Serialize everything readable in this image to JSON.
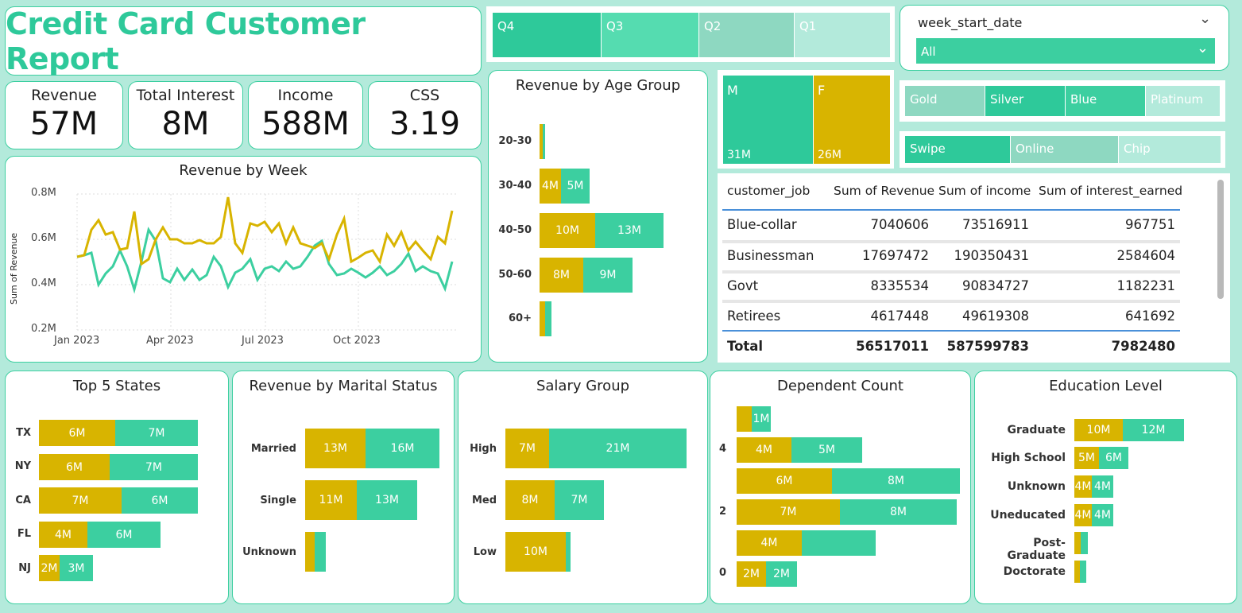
{
  "title": "Credit Card Customer Report",
  "kpis": [
    {
      "label": "Revenue",
      "value": "57M"
    },
    {
      "label": "Total Interest",
      "value": "8M"
    },
    {
      "label": "Income",
      "value": "588M"
    },
    {
      "label": "CSS",
      "value": "3.19"
    }
  ],
  "quarters": [
    "Q4",
    "Q3",
    "Q2",
    "Q1"
  ],
  "week_slicer": {
    "label": "week_start_date",
    "selected": "All"
  },
  "gender": [
    {
      "label": "M",
      "value": "31M"
    },
    {
      "label": "F",
      "value": "26M"
    }
  ],
  "card_category": [
    "Gold",
    "Silver",
    "Blue",
    "Platinum"
  ],
  "use_chip": [
    "Swipe",
    "Online",
    "Chip"
  ],
  "colors": {
    "accent": "#3ccfa0",
    "gold": "#d8b400",
    "title": "#2ec99a",
    "background": "#b3eadb"
  },
  "table": {
    "headers": [
      "customer_job",
      "Sum of Revenue",
      "Sum of income",
      "Sum of interest_earned"
    ],
    "rows": [
      [
        "Blue-collar",
        "7040606",
        "73516911",
        "967751"
      ],
      [
        "Businessman",
        "17697472",
        "190350431",
        "2584604"
      ],
      [
        "Govt",
        "8335534",
        "90834727",
        "1182231"
      ],
      [
        "Retirees",
        "4617448",
        "49619308",
        "641692"
      ]
    ],
    "total": [
      "Total",
      "56517011",
      "587599783",
      "7982480"
    ]
  },
  "weekly": {
    "title": "Revenue by Week",
    "ylabel": "Sum of Revenue",
    "yticks": [
      "0.8M",
      "0.6M",
      "0.4M",
      "0.2M"
    ],
    "xticks": [
      "Jan 2023",
      "Apr 2023",
      "Jul 2023",
      "Oct 2023"
    ]
  },
  "age": {
    "title": "Revenue by Age Group",
    "rows": [
      {
        "label": "20-30",
        "a": "",
        "b": ""
      },
      {
        "label": "30-40",
        "a": "4M",
        "b": "5M"
      },
      {
        "label": "40-50",
        "a": "10M",
        "b": "13M"
      },
      {
        "label": "50-60",
        "a": "8M",
        "b": "9M"
      },
      {
        "label": "60+",
        "a": "",
        "b": ""
      }
    ]
  },
  "states": {
    "title": "Top 5 States",
    "rows": [
      {
        "label": "TX",
        "a": "6M",
        "b": "7M"
      },
      {
        "label": "NY",
        "a": "6M",
        "b": "7M"
      },
      {
        "label": "CA",
        "a": "7M",
        "b": "6M"
      },
      {
        "label": "FL",
        "a": "4M",
        "b": "6M"
      },
      {
        "label": "NJ",
        "a": "2M",
        "b": "3M"
      }
    ]
  },
  "marital": {
    "title": "Revenue by Marital Status",
    "rows": [
      {
        "label": "Married",
        "a": "13M",
        "b": "16M"
      },
      {
        "label": "Single",
        "a": "11M",
        "b": "13M"
      },
      {
        "label": "Unknown",
        "a": "",
        "b": ""
      }
    ]
  },
  "salary": {
    "title": "Salary Group",
    "rows": [
      {
        "label": "High",
        "a": "7M",
        "b": "21M"
      },
      {
        "label": "Med",
        "a": "8M",
        "b": "7M"
      },
      {
        "label": "Low",
        "a": "10M",
        "b": ""
      }
    ]
  },
  "dependent": {
    "title": "Dependent Count",
    "ticks": [
      "4",
      "2",
      "0"
    ],
    "rows": [
      {
        "a": "",
        "b": "1M"
      },
      {
        "a": "4M",
        "b": "5M"
      },
      {
        "a": "6M",
        "b": "8M"
      },
      {
        "a": "7M",
        "b": "8M"
      },
      {
        "a": "4M",
        "b": ""
      },
      {
        "a": "2M",
        "b": "2M"
      }
    ]
  },
  "education": {
    "title": "Education Level",
    "rows": [
      {
        "label": "Graduate",
        "a": "10M",
        "b": "12M"
      },
      {
        "label": "High School",
        "a": "5M",
        "b": "6M"
      },
      {
        "label": "Unknown",
        "a": "4M",
        "b": "4M"
      },
      {
        "label": "Uneducated",
        "a": "4M",
        "b": "4M"
      },
      {
        "label": "Post-Graduate",
        "a": "",
        "b": ""
      },
      {
        "label": "Doctorate",
        "a": "",
        "b": ""
      }
    ]
  }
}
